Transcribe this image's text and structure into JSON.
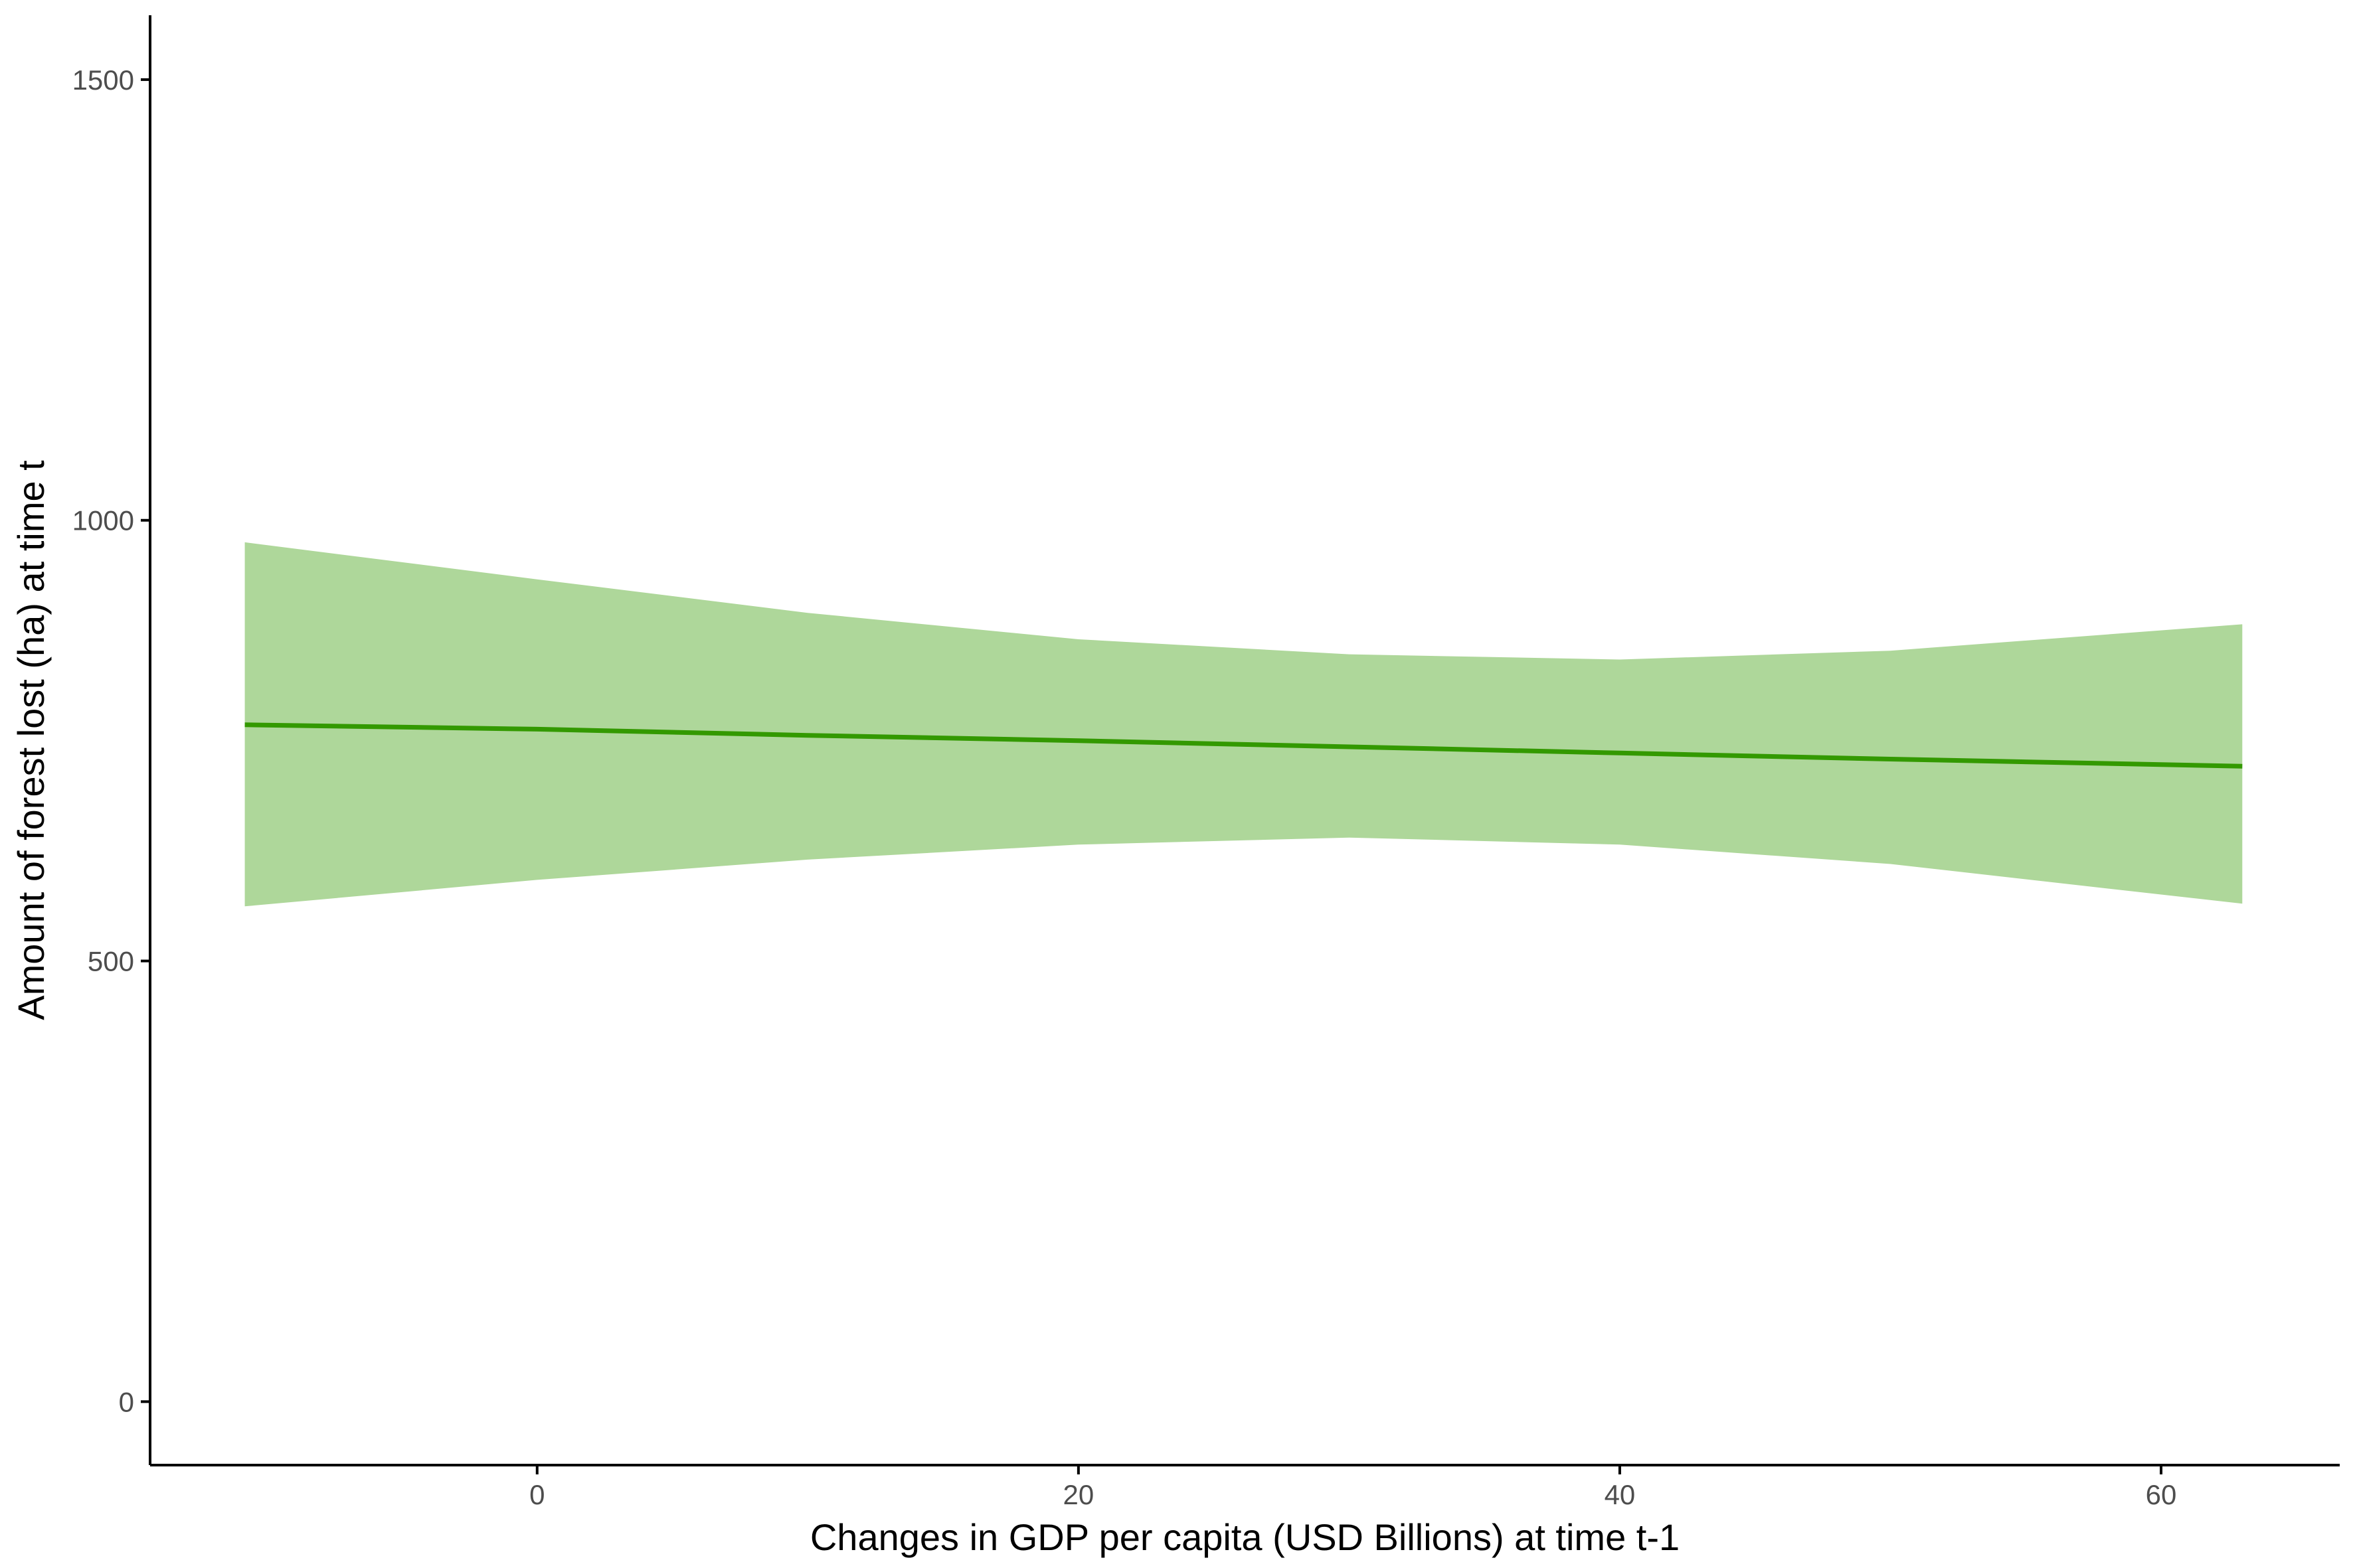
{
  "chart_data": {
    "type": "line",
    "title": "",
    "xlabel": "Changes in GDP per capita (USD Billions) at time t-1",
    "ylabel": "Amount of forest lost (ha) at time t",
    "xlim": [
      -14.3,
      66.6
    ],
    "ylim": [
      -72,
      1573
    ],
    "x_ticks": [
      0,
      20,
      40,
      60
    ],
    "y_ticks": [
      0,
      500,
      1000,
      1500
    ],
    "grid": false,
    "legend": "none",
    "colors": {
      "line": "#339900",
      "band": "#AED79A"
    },
    "series": [
      {
        "x": [
          -10.8,
          0,
          10,
          20,
          30,
          40,
          50,
          63
        ],
        "y": [
          768,
          763,
          756,
          750,
          743,
          736,
          729,
          721
        ],
        "lower": [
          562,
          592,
          615,
          632,
          640,
          632,
          610,
          565
        ],
        "upper": [
          975,
          933,
          895,
          865,
          848,
          842,
          852,
          882
        ]
      }
    ]
  }
}
